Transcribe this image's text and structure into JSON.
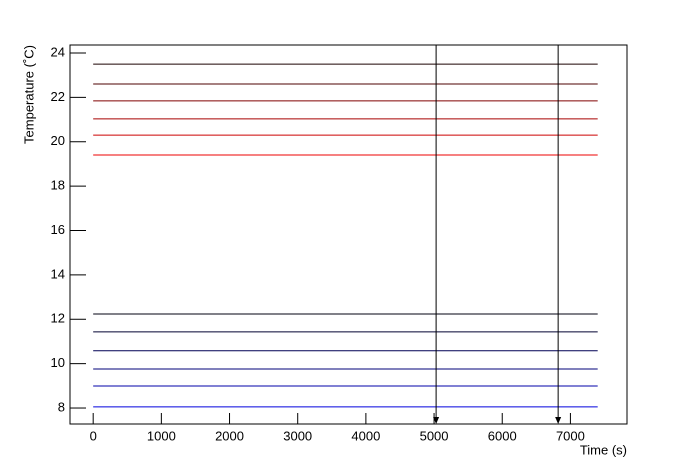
{
  "chart_data": {
    "type": "line",
    "x_label": "Time (s)",
    "y_label": "Temperature (˚C)",
    "x": [
      0,
      7400
    ],
    "series": [
      {
        "color": "#1a0000",
        "values": [
          23.5,
          23.5
        ]
      },
      {
        "color": "#4d0000",
        "values": [
          22.6,
          22.6
        ]
      },
      {
        "color": "#800000",
        "values": [
          21.84,
          21.84
        ]
      },
      {
        "color": "#a80000",
        "values": [
          21.03,
          21.03
        ]
      },
      {
        "color": "#cc0000",
        "values": [
          20.3,
          20.3
        ]
      },
      {
        "color": "#ee0000",
        "values": [
          19.4,
          19.4
        ]
      },
      {
        "color": "#000010",
        "values": [
          12.24,
          12.24
        ]
      },
      {
        "color": "#000030",
        "values": [
          11.43,
          11.43
        ]
      },
      {
        "color": "#000055",
        "values": [
          10.58,
          10.58
        ]
      },
      {
        "color": "#00007a",
        "values": [
          9.76,
          9.76
        ]
      },
      {
        "color": "#0000a8",
        "values": [
          8.99,
          8.99
        ]
      },
      {
        "color": "#0000dd",
        "values": [
          8.05,
          8.05
        ]
      }
    ],
    "markers": [
      5030,
      6820
    ],
    "xlim": [
      -340,
      7830
    ],
    "ylim": [
      7.28,
      24.36
    ],
    "xticks": [
      0,
      1000,
      2000,
      3000,
      4000,
      5000,
      6000,
      7000
    ],
    "yticks": [
      8,
      10,
      12,
      14,
      16,
      18,
      20,
      22,
      24
    ]
  }
}
